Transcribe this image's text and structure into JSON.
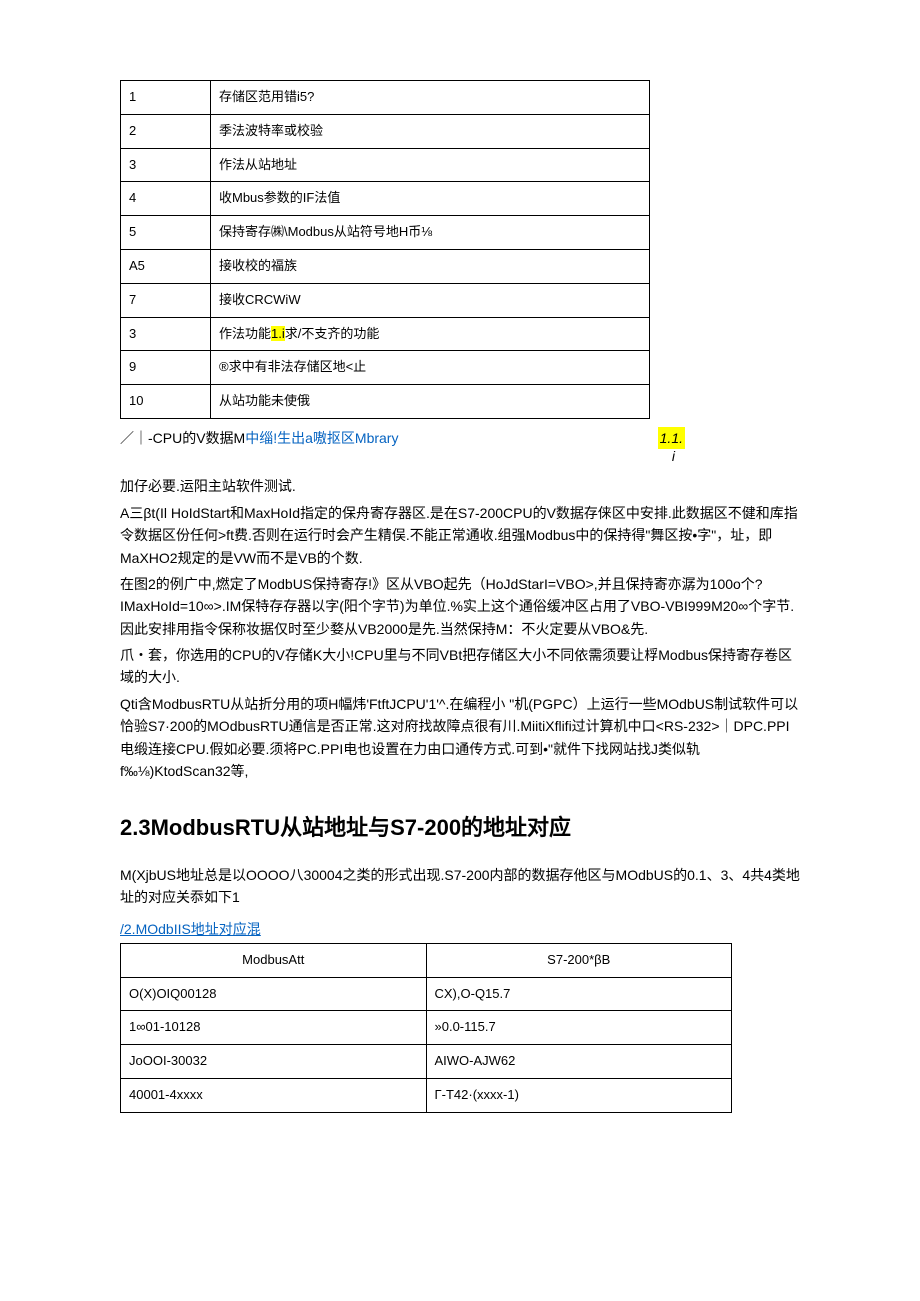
{
  "table1": {
    "rows": [
      [
        "1",
        "存储区范用错i5?"
      ],
      [
        "2",
        "季法波特率或校验"
      ],
      [
        "3",
        "作法从站地址"
      ],
      [
        "4",
        "收Mbus参数的IF法值"
      ],
      [
        "5",
        "保持寄存㈱\\Modbus从站符号地H币⅛"
      ],
      [
        "A5",
        "接收校的福族"
      ],
      [
        "7",
        "接收CRCWiW"
      ],
      [
        "3",
        "作法功能",
        "1.i",
        "求/不支齐的功能"
      ],
      [
        "9",
        "®求中有非法存储区地<止"
      ],
      [
        "10",
        "从站功能未使俄"
      ]
    ]
  },
  "caption": {
    "prefix": "／｜-CPU的V数据M",
    "link": "中缁!生出a嗷抠区Mbrary",
    "note1": "1.1.",
    "note2": "i"
  },
  "paragraphs": [
    "加仔必要.运阳主站软件测试.",
    "A三βt(Il                         HoIdStart和MaxHoId指定的保舟寄存器区.是在S7-200CPU的V数据存俫区中安排.此数据区不健和库指令数据区份任何>ft费.否则在运行时会产生精俣.不能正常通收.组强Modbus中的保持得\"舞区按•字\"，址，即MaXHO2规定的是VW而不是VB的个数.",
    "在图2的例广中,燃定了ModbUS保持寄存!》区从VBO起先（HoJdStarI=VBO>,并且保持寄亦潺为100o个?IMaxHoId=10∞>.IM保特存存器以字(阳个字节)为单位.%实上这个通俗缓冲区占用了VBO-VBI999M20∞个字节.因此安排用指令保称妆据仅时至少婺从VB2000是先.当然保持M：不火定要从VBO&先.",
    "爪・套，你选用的CPU的V存储K大小!CPU里与不同VBt把存储区大小不同依需须要让桴Modbus保持寄存卷区域的大小.",
    "Qti含ModbusRTU从站折分用的项H幅炜'FtftJCPU'1'^.在编程小 \"机(PGPC）上运行一些MOdbUS制试软件可以恰验S7·200的MOdbusRTU通信是否正常.这对府找故障点很有川.MiitiXflifi过计算机中口<RS-232>｜DPC.PPI电缎连接CPU.假如必要.须将PC.PPI电也设置在力由口通传方式.可到•\"就件下找网站找J类似轨f‰⅛)KtodScan32等,"
  ],
  "heading": "2.3ModbusRTU从站地址与S7-200的地址对应",
  "para_after_heading": "M(XjbUS地址总是以OOOO八30004之类的形式出现.S7-200内部的数据存他区与MOdbUS的0.1、3、4共4类地址的对应关忝如下1",
  "table2_caption": "/2.MOdbIIS地址对应混",
  "table2": {
    "headers": [
      "ModbusAtt",
      "S7-200*βB"
    ],
    "rows": [
      [
        "O(X)OIQ00128",
        "CX),O-Q15.7"
      ],
      [
        "1∞01-10128",
        "»0.0-115.7"
      ],
      [
        "JoOOI-30032",
        "AIWO-AJW62"
      ],
      [
        "40001-4xxxx",
        "Γ-T42·(xxxx-1)"
      ]
    ]
  }
}
